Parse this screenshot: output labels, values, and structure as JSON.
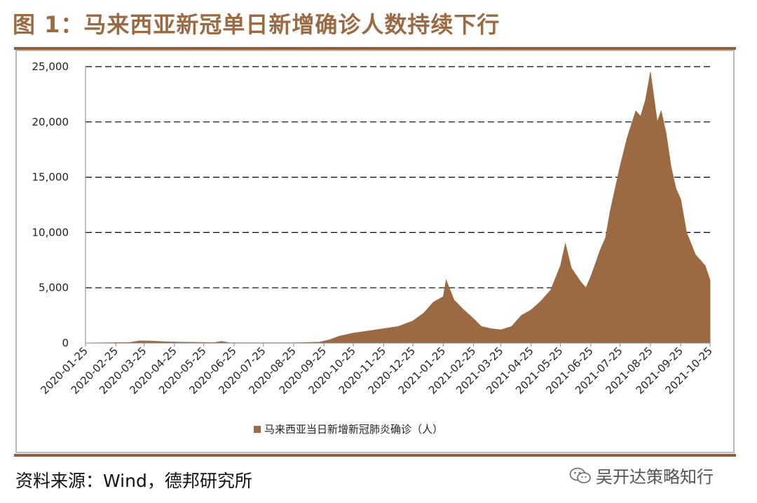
{
  "header": {
    "title": "图 1：马来西亚新冠单日新增确诊人数持续下行"
  },
  "footer": {
    "source": "资料来源：Wind，德邦研究所",
    "watermark": "吴开达策略知行",
    "watermark_icon": "wechat-icon"
  },
  "colors": {
    "title": "#9b6a43",
    "rule": "#8e5f3a",
    "series": "#9b6a43",
    "grid": "#000000"
  },
  "chart_data": {
    "type": "area",
    "ylim": [
      0,
      25000
    ],
    "yticks": [
      "0",
      "5,000",
      "10,000",
      "15,000",
      "20,000",
      "25,000"
    ],
    "ytick_values": [
      0,
      5000,
      10000,
      15000,
      20000,
      25000
    ],
    "xticks": [
      "2020-01-25",
      "2020-02-25",
      "2020-03-25",
      "2020-04-25",
      "2020-05-25",
      "2020-06-25",
      "2020-07-25",
      "2020-08-25",
      "2020-09-25",
      "2020-10-25",
      "2020-11-25",
      "2020-12-25",
      "2021-01-25",
      "2021-02-25",
      "2021-03-25",
      "2021-04-25",
      "2021-05-25",
      "2021-06-25",
      "2021-07-25",
      "2021-08-25",
      "2021-09-25",
      "2021-10-25"
    ],
    "x_start": "2020-01-25",
    "x_end": "2021-10-25",
    "grid": "horizontal dashed",
    "legend_position": "bottom",
    "series": [
      {
        "name": "马来西亚当日新增新冠肺炎确诊（人）",
        "x": [
          "2020-01-25",
          "2020-03-10",
          "2020-03-20",
          "2020-04-01",
          "2020-04-15",
          "2020-05-01",
          "2020-05-20",
          "2020-06-05",
          "2020-06-12",
          "2020-06-20",
          "2020-07-25",
          "2020-08-25",
          "2020-09-20",
          "2020-10-01",
          "2020-10-10",
          "2020-10-25",
          "2020-11-10",
          "2020-11-25",
          "2020-12-10",
          "2020-12-25",
          "2021-01-05",
          "2021-01-15",
          "2021-01-25",
          "2021-01-28",
          "2021-02-05",
          "2021-02-15",
          "2021-02-25",
          "2021-03-05",
          "2021-03-15",
          "2021-03-25",
          "2021-04-05",
          "2021-04-15",
          "2021-04-25",
          "2021-05-05",
          "2021-05-15",
          "2021-05-25",
          "2021-05-30",
          "2021-06-05",
          "2021-06-15",
          "2021-06-20",
          "2021-06-25",
          "2021-07-05",
          "2021-07-10",
          "2021-07-15",
          "2021-07-25",
          "2021-08-01",
          "2021-08-10",
          "2021-08-15",
          "2021-08-20",
          "2021-08-25",
          "2021-09-01",
          "2021-09-05",
          "2021-09-10",
          "2021-09-15",
          "2021-09-20",
          "2021-09-25",
          "2021-10-01",
          "2021-10-10",
          "2021-10-20",
          "2021-10-25"
        ],
        "values": [
          0,
          50,
          200,
          180,
          120,
          80,
          60,
          40,
          150,
          30,
          20,
          20,
          80,
          300,
          600,
          900,
          1100,
          1300,
          1500,
          2000,
          2700,
          3700,
          4200,
          5700,
          3900,
          3000,
          2200,
          1500,
          1300,
          1200,
          1500,
          2500,
          3000,
          3800,
          4800,
          7000,
          9000,
          6800,
          5500,
          5000,
          6000,
          8500,
          9500,
          12000,
          16000,
          18500,
          21000,
          20500,
          22000,
          24500,
          20000,
          21000,
          19000,
          16000,
          14000,
          13000,
          10000,
          8000,
          7000,
          5700
        ]
      }
    ]
  }
}
